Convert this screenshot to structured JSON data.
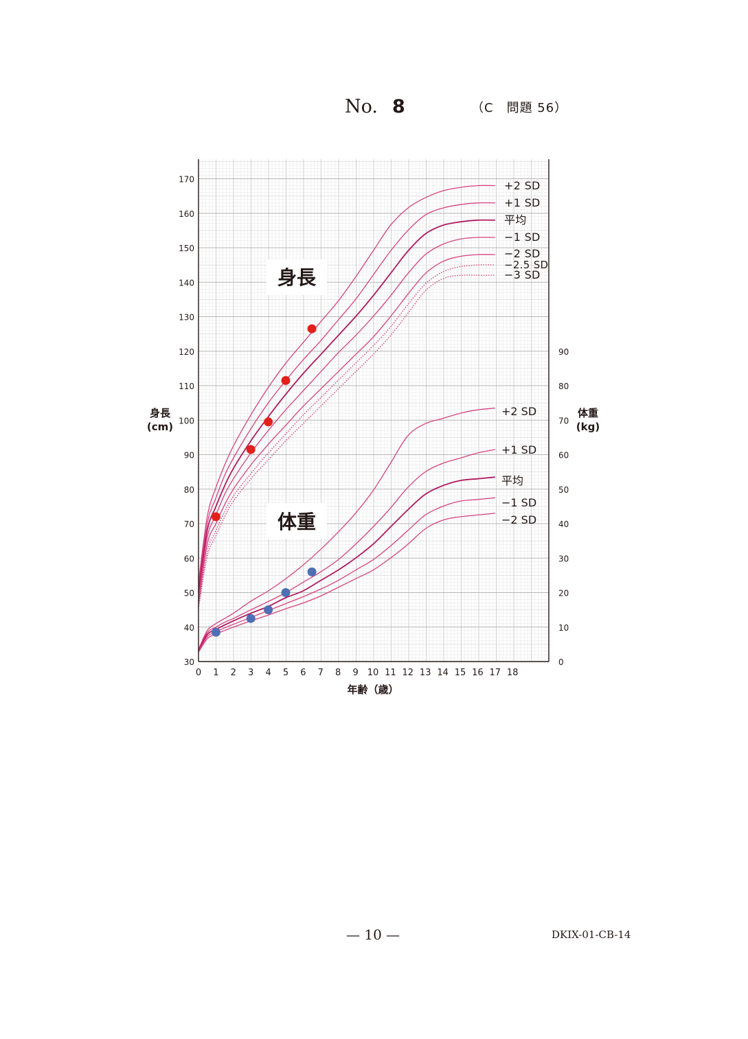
{
  "header": {
    "no_label": "No.",
    "no_value": "8",
    "reference": "（C　問題 56）"
  },
  "footer": {
    "page": "— 10 —",
    "code": "DKIX-01-CB-14"
  },
  "colors": {
    "grid_major": "#c9c9c9",
    "grid_minor": "#e4e4e4",
    "curve": "#d6417f",
    "curve_mean": "#b0185e",
    "height_point": "#e3201b",
    "weight_point": "#4e6fb5"
  },
  "chart_data": {
    "type": "line",
    "xlabel": "年齢（歳）",
    "ylabel_left": "身長",
    "ylabel_left_unit": "(cm)",
    "ylabel_right": "体重",
    "ylabel_right_unit": "(kg)",
    "xlim": [
      0,
      20
    ],
    "ylim_left": [
      30,
      175
    ],
    "ylim_right": [
      0,
      90
    ],
    "x_ticks": [
      "0",
      "1",
      "2",
      "3",
      "4",
      "5",
      "6",
      "7",
      "8",
      "9",
      "10",
      "11",
      "12",
      "13",
      "14",
      "15",
      "16",
      "17",
      "18"
    ],
    "y_ticks_left": [
      "30",
      "40",
      "50",
      "60",
      "70",
      "80",
      "90",
      "100",
      "110",
      "120",
      "130",
      "140",
      "150",
      "160",
      "170"
    ],
    "y_ticks_right": [
      "0",
      "10",
      "20",
      "30",
      "40",
      "50",
      "60",
      "70",
      "80",
      "90"
    ],
    "grid": true,
    "height_title": "身長",
    "weight_title": "体重",
    "height_curves": [
      {
        "name": "+2 SD",
        "style": "solid",
        "x": [
          0,
          0.5,
          1,
          1.5,
          2,
          3,
          4,
          5,
          6,
          7,
          8,
          9,
          10,
          11,
          12,
          13,
          14,
          15,
          16,
          17
        ],
        "y": [
          53,
          72,
          80.5,
          87,
          92.5,
          101.5,
          109.5,
          116.5,
          122.5,
          128.5,
          134.5,
          141.5,
          149,
          156.5,
          161.5,
          164.5,
          166.5,
          167.5,
          168,
          168
        ]
      },
      {
        "name": "+1 SD",
        "style": "solid",
        "x": [
          0,
          0.5,
          1,
          1.5,
          2,
          3,
          4,
          5,
          6,
          7,
          8,
          9,
          10,
          11,
          12,
          13,
          14,
          15,
          16,
          17
        ],
        "y": [
          51.5,
          70,
          77.5,
          84,
          89,
          97.5,
          105,
          111.5,
          117.5,
          123,
          129,
          135,
          142,
          149,
          155,
          159.5,
          161.5,
          162.5,
          163,
          163
        ]
      },
      {
        "name": "平均",
        "style": "solid",
        "x": [
          0,
          0.5,
          1,
          1.5,
          2,
          3,
          4,
          5,
          6,
          7,
          8,
          9,
          10,
          11,
          12,
          13,
          14,
          15,
          16,
          17
        ],
        "y": [
          50,
          68,
          75,
          81,
          86,
          94,
          101,
          107.5,
          113.5,
          119,
          124.5,
          130,
          136,
          142.5,
          149,
          154,
          156.5,
          157.5,
          158,
          158
        ]
      },
      {
        "name": "−1 SD",
        "style": "solid",
        "x": [
          0,
          0.5,
          1,
          1.5,
          2,
          3,
          4,
          5,
          6,
          7,
          8,
          9,
          10,
          11,
          12,
          13,
          14,
          15,
          16,
          17
        ],
        "y": [
          48.5,
          66,
          72.5,
          78.5,
          83,
          90.5,
          97,
          103,
          108.5,
          114,
          119.5,
          124.5,
          130,
          136,
          142.5,
          148,
          151,
          152.5,
          153,
          153
        ]
      },
      {
        "name": "−2 SD",
        "style": "solid",
        "x": [
          0,
          0.5,
          1,
          1.5,
          2,
          3,
          4,
          5,
          6,
          7,
          8,
          9,
          10,
          11,
          12,
          13,
          14,
          15,
          16,
          17
        ],
        "y": [
          47,
          64,
          70,
          75.5,
          80,
          87,
          93,
          98.5,
          104,
          109,
          114,
          119,
          124,
          130,
          136.5,
          142.5,
          146,
          147.5,
          148,
          148
        ]
      },
      {
        "name": "−2.5 SD",
        "style": "dotted",
        "x": [
          0,
          0.5,
          1,
          1.5,
          2,
          3,
          4,
          5,
          6,
          7,
          8,
          9,
          10,
          11,
          12,
          13,
          14,
          15,
          16,
          17
        ],
        "y": [
          46,
          62,
          68,
          73.5,
          78,
          84.5,
          90.5,
          96,
          101.5,
          106.5,
          111.5,
          116.5,
          121.5,
          127,
          133.5,
          139.5,
          143,
          144.5,
          145,
          145
        ]
      },
      {
        "name": "−3 SD",
        "style": "dotted",
        "x": [
          0,
          0.5,
          1,
          1.5,
          2,
          3,
          4,
          5,
          6,
          7,
          8,
          9,
          10,
          11,
          12,
          13,
          14,
          15,
          16,
          17
        ],
        "y": [
          45.5,
          60.5,
          66.5,
          72,
          76.5,
          83,
          88.5,
          94,
          99,
          104,
          109,
          114,
          119,
          124.5,
          131,
          137.5,
          141,
          142,
          142,
          142
        ]
      }
    ],
    "weight_curves": [
      {
        "name": "+2 SD",
        "x": [
          0,
          0.5,
          1,
          1.5,
          2,
          3,
          4,
          5,
          6,
          7,
          8,
          9,
          10,
          11,
          12,
          13,
          14,
          15,
          16,
          17
        ],
        "y": [
          3.5,
          9,
          11,
          12.5,
          14,
          17.5,
          20.5,
          24,
          28,
          32.5,
          37.5,
          43,
          49.5,
          57.5,
          65.5,
          69,
          70.5,
          72,
          73,
          73.5
        ]
      },
      {
        "name": "+1 SD",
        "x": [
          0,
          0.5,
          1,
          1.5,
          2,
          3,
          4,
          5,
          6,
          7,
          8,
          9,
          10,
          11,
          12,
          13,
          14,
          15,
          16,
          17
        ],
        "y": [
          3.3,
          8.4,
          10,
          11.4,
          12.5,
          15,
          17.4,
          20,
          23,
          26,
          29.5,
          34,
          39,
          44.5,
          50.5,
          55,
          57.5,
          59,
          60.5,
          61.5
        ]
      },
      {
        "name": "平均",
        "x": [
          0,
          0.5,
          1,
          1.5,
          2,
          3,
          4,
          5,
          6,
          7,
          8,
          9,
          10,
          11,
          12,
          13,
          14,
          15,
          16,
          17
        ],
        "y": [
          3.1,
          7.8,
          9.3,
          10.6,
          11.8,
          14,
          16,
          18.5,
          20.5,
          23.5,
          26.5,
          30,
          34,
          39,
          44,
          48.5,
          51,
          52.5,
          53,
          53.5
        ]
      },
      {
        "name": "−1 SD",
        "x": [
          0,
          0.5,
          1,
          1.5,
          2,
          3,
          4,
          5,
          6,
          7,
          8,
          9,
          10,
          11,
          12,
          13,
          14,
          15,
          16,
          17
        ],
        "y": [
          2.9,
          7.2,
          8.6,
          9.8,
          10.8,
          12.8,
          14.8,
          16.8,
          18.8,
          21,
          23.5,
          26.5,
          29.5,
          33.5,
          38,
          42.5,
          45,
          46.5,
          47,
          47.5
        ]
      },
      {
        "name": "−2 SD",
        "x": [
          0,
          0.5,
          1,
          1.5,
          2,
          3,
          4,
          5,
          6,
          7,
          8,
          9,
          10,
          11,
          12,
          13,
          14,
          15,
          16,
          17
        ],
        "y": [
          2.7,
          6.6,
          8,
          9,
          10,
          11.8,
          13.5,
          15.3,
          17,
          19,
          21.5,
          24,
          26.5,
          30,
          34,
          38.5,
          41,
          42,
          42.5,
          43
        ]
      }
    ],
    "height_points": {
      "x": [
        1,
        3,
        4,
        5,
        6.5
      ],
      "y": [
        72,
        91.5,
        99.5,
        111.5,
        126.5
      ]
    },
    "weight_points": {
      "x": [
        1,
        3,
        4,
        5,
        6.5
      ],
      "y": [
        8.5,
        12.5,
        15,
        20,
        26
      ]
    }
  }
}
